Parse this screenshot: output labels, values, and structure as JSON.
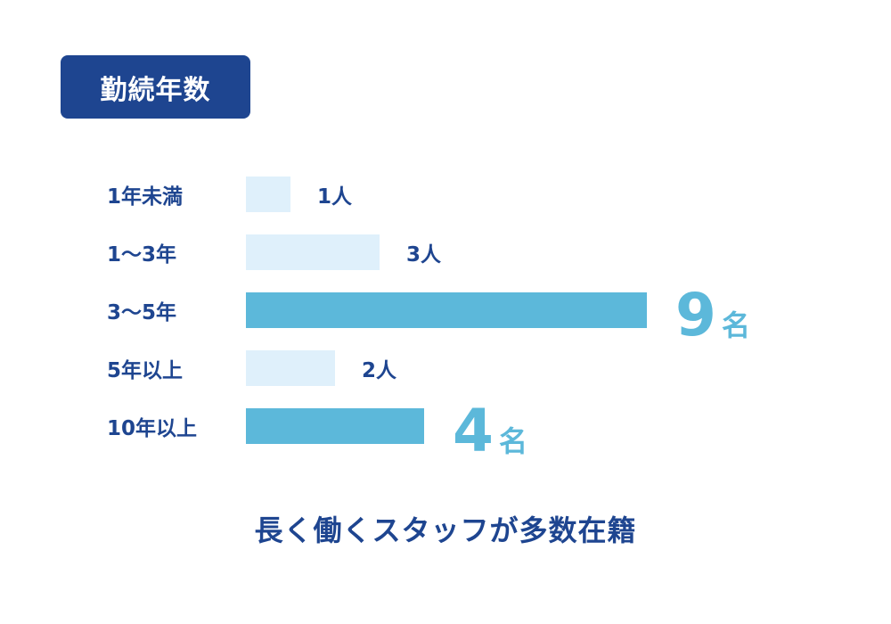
{
  "header": {
    "title": "勤続年数"
  },
  "colors": {
    "badge_bg": "#1e4590",
    "text_dark": "#1e4590",
    "bar_light": "#dff0fb",
    "bar_highlight": "#5cb8da"
  },
  "chart_data": {
    "type": "bar",
    "orientation": "horizontal",
    "title": "勤続年数",
    "categories": [
      "1年未満",
      "1〜3年",
      "3〜5年",
      "5年以上",
      "10年以上"
    ],
    "values": [
      1,
      3,
      9,
      2,
      4
    ],
    "value_labels": [
      {
        "num": "1",
        "unit": "人",
        "highlight": false
      },
      {
        "num": "3",
        "unit": "人",
        "highlight": false
      },
      {
        "num": "9",
        "unit": "名",
        "highlight": true
      },
      {
        "num": "2",
        "unit": "人",
        "highlight": false
      },
      {
        "num": "4",
        "unit": "名",
        "highlight": true
      }
    ],
    "xlim": [
      0,
      9
    ],
    "grid": false
  },
  "footer": {
    "caption": "長く働くスタッフが多数在籍"
  }
}
